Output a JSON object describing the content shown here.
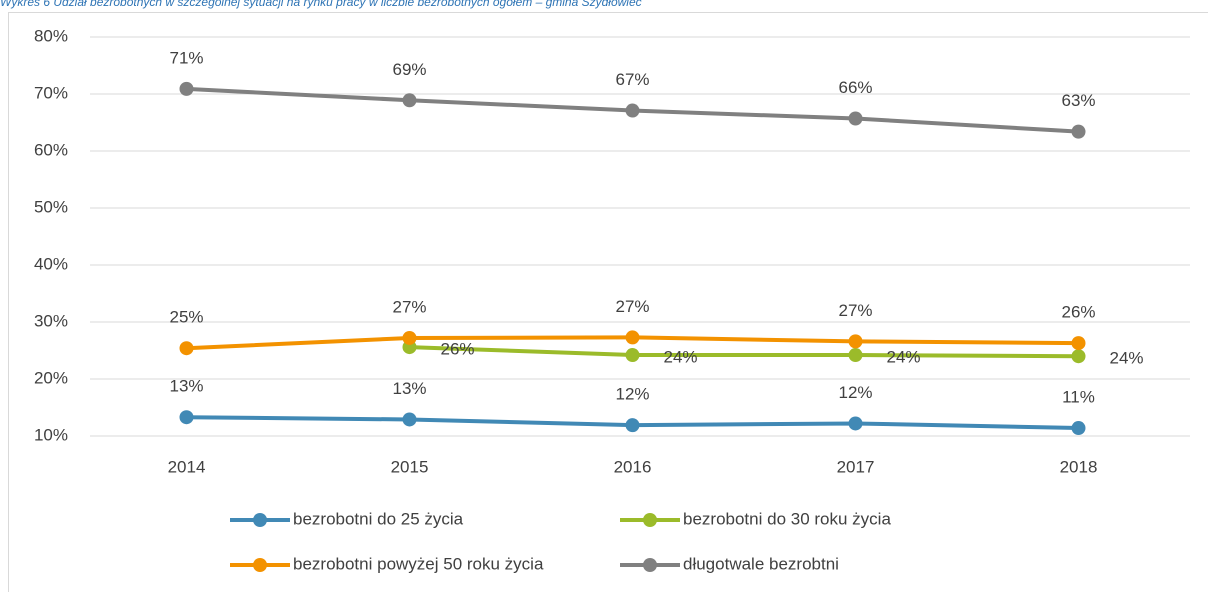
{
  "chart_data": {
    "type": "line",
    "title": "Wykres 6 Udział bezrobotnych w szczególnej sytuacji na rynku pracy w liczbie bezrobotnych ogółem – gmina Szydłowiec",
    "categories": [
      "2014",
      "2015",
      "2016",
      "2017",
      "2018"
    ],
    "series": [
      {
        "name": "bezrobotni do 25 życia",
        "color": "#4189b5",
        "values": [
          13.3,
          12.9,
          11.9,
          12.2,
          11.4
        ],
        "value_labels": [
          "13%",
          "13%",
          "12%",
          "12%",
          "11%"
        ]
      },
      {
        "name": "bezrobotni do 30 roku życia",
        "color": "#9bbb2a",
        "values": [
          null,
          25.6,
          24.2,
          24.2,
          24.0
        ],
        "value_labels": [
          null,
          "26%",
          "24%",
          "24%",
          "24%"
        ]
      },
      {
        "name": "bezrobotni powyżej 50 roku życia",
        "color": "#f39200",
        "values": [
          25.4,
          27.2,
          27.3,
          26.6,
          26.3
        ],
        "value_labels": [
          "25%",
          "27%",
          "27%",
          "27%",
          "26%"
        ]
      },
      {
        "name": "długotwale bezrobtni",
        "color": "#808080",
        "values": [
          70.9,
          68.9,
          67.1,
          65.7,
          63.4
        ],
        "value_labels": [
          "71%",
          "69%",
          "67%",
          "66%",
          "63%"
        ]
      }
    ],
    "ylim": [
      10,
      80
    ],
    "yticks": [
      {
        "value": 10,
        "label": "10%"
      },
      {
        "value": 20,
        "label": "20%"
      },
      {
        "value": 30,
        "label": "30%"
      },
      {
        "value": 40,
        "label": "40%"
      },
      {
        "value": 50,
        "label": "50%"
      },
      {
        "value": 60,
        "label": "60%"
      },
      {
        "value": 70,
        "label": "70%"
      },
      {
        "value": 80,
        "label": "80%"
      }
    ],
    "grid": true,
    "legend": "bottom"
  }
}
